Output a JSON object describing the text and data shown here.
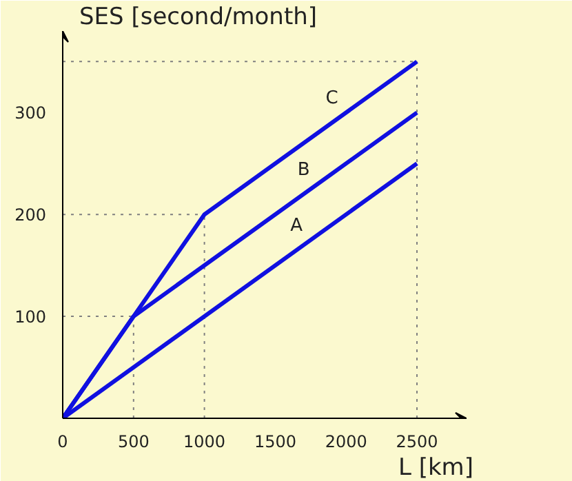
{
  "chart_data": {
    "type": "line",
    "xlabel": "L [km]",
    "ylabel": "SES [second/month]",
    "xlim": [
      0,
      2850
    ],
    "ylim": [
      0,
      380
    ],
    "xticks": [
      0,
      500,
      1000,
      1500,
      2000,
      2500
    ],
    "yticks": [
      100,
      200,
      300
    ],
    "grid": false,
    "legend": false,
    "marker": "none",
    "line_style": "solid",
    "series": [
      {
        "name": "A",
        "color": "#1010e0",
        "x": [
          0,
          2500
        ],
        "values": [
          0,
          250
        ]
      },
      {
        "name": "B",
        "color": "#1010e0",
        "x": [
          0,
          500,
          2500
        ],
        "values": [
          0,
          100,
          300
        ]
      },
      {
        "name": "C",
        "color": "#1010e0",
        "x": [
          0,
          500,
          1000,
          2500
        ],
        "values": [
          0,
          100,
          200,
          350
        ]
      }
    ],
    "ref_lines": [
      {
        "axis": "y",
        "value": 100,
        "label": null,
        "color": "#808080",
        "line_style": "dotted"
      },
      {
        "axis": "y",
        "value": 200,
        "label": null,
        "color": "#808080",
        "line_style": "dotted"
      },
      {
        "axis": "y",
        "value": 350,
        "label": null,
        "color": "#808080",
        "line_style": "dotted"
      },
      {
        "axis": "x",
        "value": 500,
        "label": null,
        "color": "#808080",
        "line_style": "dotted"
      },
      {
        "axis": "x",
        "value": 1000,
        "label": null,
        "color": "#808080",
        "line_style": "dotted"
      },
      {
        "axis": "x",
        "value": 2500,
        "label": null,
        "color": "#808080",
        "line_style": "dotted"
      }
    ]
  }
}
